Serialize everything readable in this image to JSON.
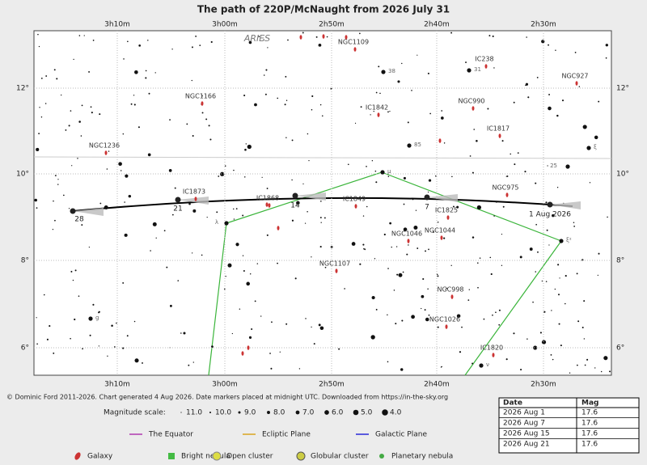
{
  "title": "The path of 220P/McNaught from 2026 July 31",
  "ra_ticks": [
    "3h10m",
    "3h00m",
    "2h50m",
    "2h40m",
    "2h30m"
  ],
  "dec_ticks": [
    "12°",
    "10°",
    "8°",
    "6°"
  ],
  "constellation": "ARIES",
  "path_labels": [
    "28",
    "21",
    "14",
    "7",
    "1 Aug 2026"
  ],
  "objects": [
    "NGC1109",
    "IC238",
    "NGC927",
    "NGC1166",
    "IC1842",
    "NGC990",
    "IC1817",
    "NGC1236",
    "NGC975",
    "IC1873",
    "IC1868",
    "IC1849",
    "IC1825",
    "NGC1046",
    "NGC1044",
    "NGC1107",
    "NGC998",
    "NGC1026",
    "IC1820"
  ],
  "star_labels": [
    "38",
    "31",
    "85",
    "ξ",
    "25",
    "μ",
    "λ",
    "ξ²",
    "g",
    "ν"
  ],
  "credit": "© Dominic Ford 2011-2026. Chart generated 4 Aug 2026. Date markers placed at midnight UTC. Downloaded from https://in-the-sky.org",
  "magnitude_scale": {
    "label": "Magnitude scale:",
    "values": [
      "11.0",
      "10.0",
      "9.0",
      "8.0",
      "7.0",
      "6.0",
      "5.0",
      "4.0"
    ]
  },
  "line_legend": [
    "The Equator",
    "Ecliptic Plane",
    "Galactic Plane"
  ],
  "symbol_legend": [
    "Galaxy",
    "Bright nebula",
    "Open cluster",
    "Globular cluster",
    "Planetary nebula"
  ],
  "table": {
    "header": [
      "Date",
      "Mag"
    ],
    "rows": [
      [
        "2026 Aug 1",
        "17.6"
      ],
      [
        "2026 Aug 7",
        "17.6"
      ],
      [
        "2026 Aug 15",
        "17.6"
      ],
      [
        "2026 Aug 21",
        "17.6"
      ]
    ]
  }
}
